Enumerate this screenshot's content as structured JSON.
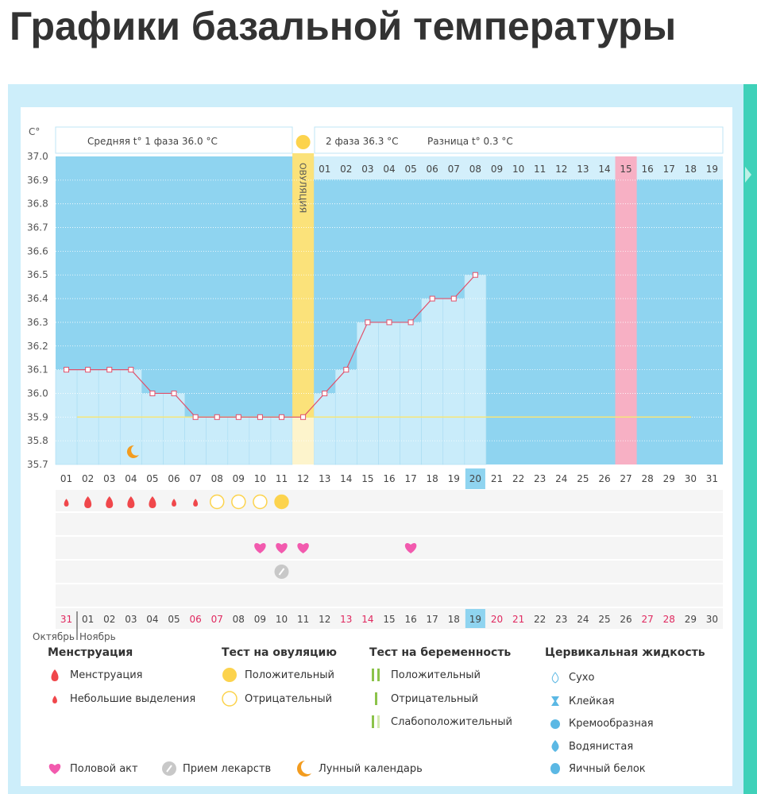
{
  "page_title": "Графики базальной температуры",
  "header": {
    "unit": "C°",
    "phase1": "Средняя t° 1 фаза 36.0 °C",
    "phase2": "2 фаза 36.3 °C",
    "diff": "Разница t° 0.3 °C",
    "ovulation": "ОВУЛЯЦИЯ"
  },
  "chart_data": {
    "type": "line",
    "ylim": [
      35.7,
      37.0
    ],
    "yticks": [
      "37.0",
      "36.9",
      "36.8",
      "36.7",
      "36.6",
      "36.5",
      "36.4",
      "36.3",
      "36.2",
      "36.1",
      "36.0",
      "35.9",
      "35.8",
      "35.7"
    ],
    "cycle_days": [
      "01",
      "02",
      "03",
      "04",
      "05",
      "06",
      "07",
      "08",
      "09",
      "10",
      "11",
      "12",
      "13",
      "14",
      "15",
      "16",
      "17",
      "18",
      "19",
      "20",
      "21",
      "22",
      "23",
      "24",
      "25",
      "26",
      "27",
      "28",
      "29",
      "30",
      "31"
    ],
    "phase2_days": [
      "01",
      "02",
      "03",
      "04",
      "05",
      "06",
      "07",
      "08",
      "09",
      "10",
      "11",
      "12",
      "13",
      "14",
      "15",
      "16",
      "17",
      "18",
      "19"
    ],
    "temperatures": [
      36.1,
      36.1,
      36.1,
      36.1,
      36.0,
      36.0,
      35.9,
      35.9,
      35.9,
      35.9,
      35.9,
      35.9,
      36.0,
      36.1,
      36.3,
      36.3,
      36.3,
      36.4,
      36.4,
      36.5
    ],
    "coverline": 35.9,
    "ovulation_day": 12,
    "highlight_day": 27,
    "today_day": 20,
    "moon_day": 4,
    "dates": [
      "31",
      "01",
      "02",
      "03",
      "04",
      "05",
      "06",
      "07",
      "08",
      "09",
      "10",
      "11",
      "12",
      "13",
      "14",
      "15",
      "16",
      "17",
      "18",
      "19",
      "20",
      "21",
      "22",
      "23",
      "24",
      "25",
      "26",
      "27",
      "28",
      "29",
      "30"
    ],
    "weekend_dates": [
      0,
      6,
      7,
      13,
      14,
      20,
      21,
      27,
      28
    ],
    "months": [
      "Октябрь",
      "Ноябрь"
    ],
    "menstruation": {
      "1": "small",
      "2": "large",
      "3": "large",
      "4": "large",
      "5": "large",
      "6": "small",
      "7": "small"
    },
    "ovulation_tests": {
      "8": "negative",
      "9": "negative",
      "10": "negative",
      "11": "positive"
    },
    "intercourse_days": [
      10,
      11,
      12,
      17
    ],
    "medication_days": [
      11
    ]
  },
  "colors": {
    "bg_dark": "#8fd4f0",
    "bar": "#c9ecfa",
    "ovulation": "#fbe27a",
    "highlight": "#f7b0c4",
    "line": "#e0506a",
    "drop": "#f0474b",
    "sun": "#fcd34d",
    "heart": "#f25aae",
    "teal": "#3fd1b9"
  },
  "legend": {
    "menstruation": {
      "title": "Менструация",
      "items": [
        "Менструация",
        "Небольшие выделения"
      ]
    },
    "ovulation_test": {
      "title": "Тест на овуляцию",
      "items": [
        "Положительный",
        "Отрицательный"
      ]
    },
    "pregnancy_test": {
      "title": "Тест на беременность",
      "items": [
        "Положительный",
        "Отрицательный",
        "Слабоположительный"
      ]
    },
    "cervical": {
      "title": "Цервикальная жидкость",
      "items": [
        "Сухо",
        "Клейкая",
        "Кремообразная",
        "Водянистая",
        "Яичный белок"
      ]
    },
    "other": [
      "Половой акт",
      "Прием лекарств",
      "Лунный календарь"
    ]
  }
}
